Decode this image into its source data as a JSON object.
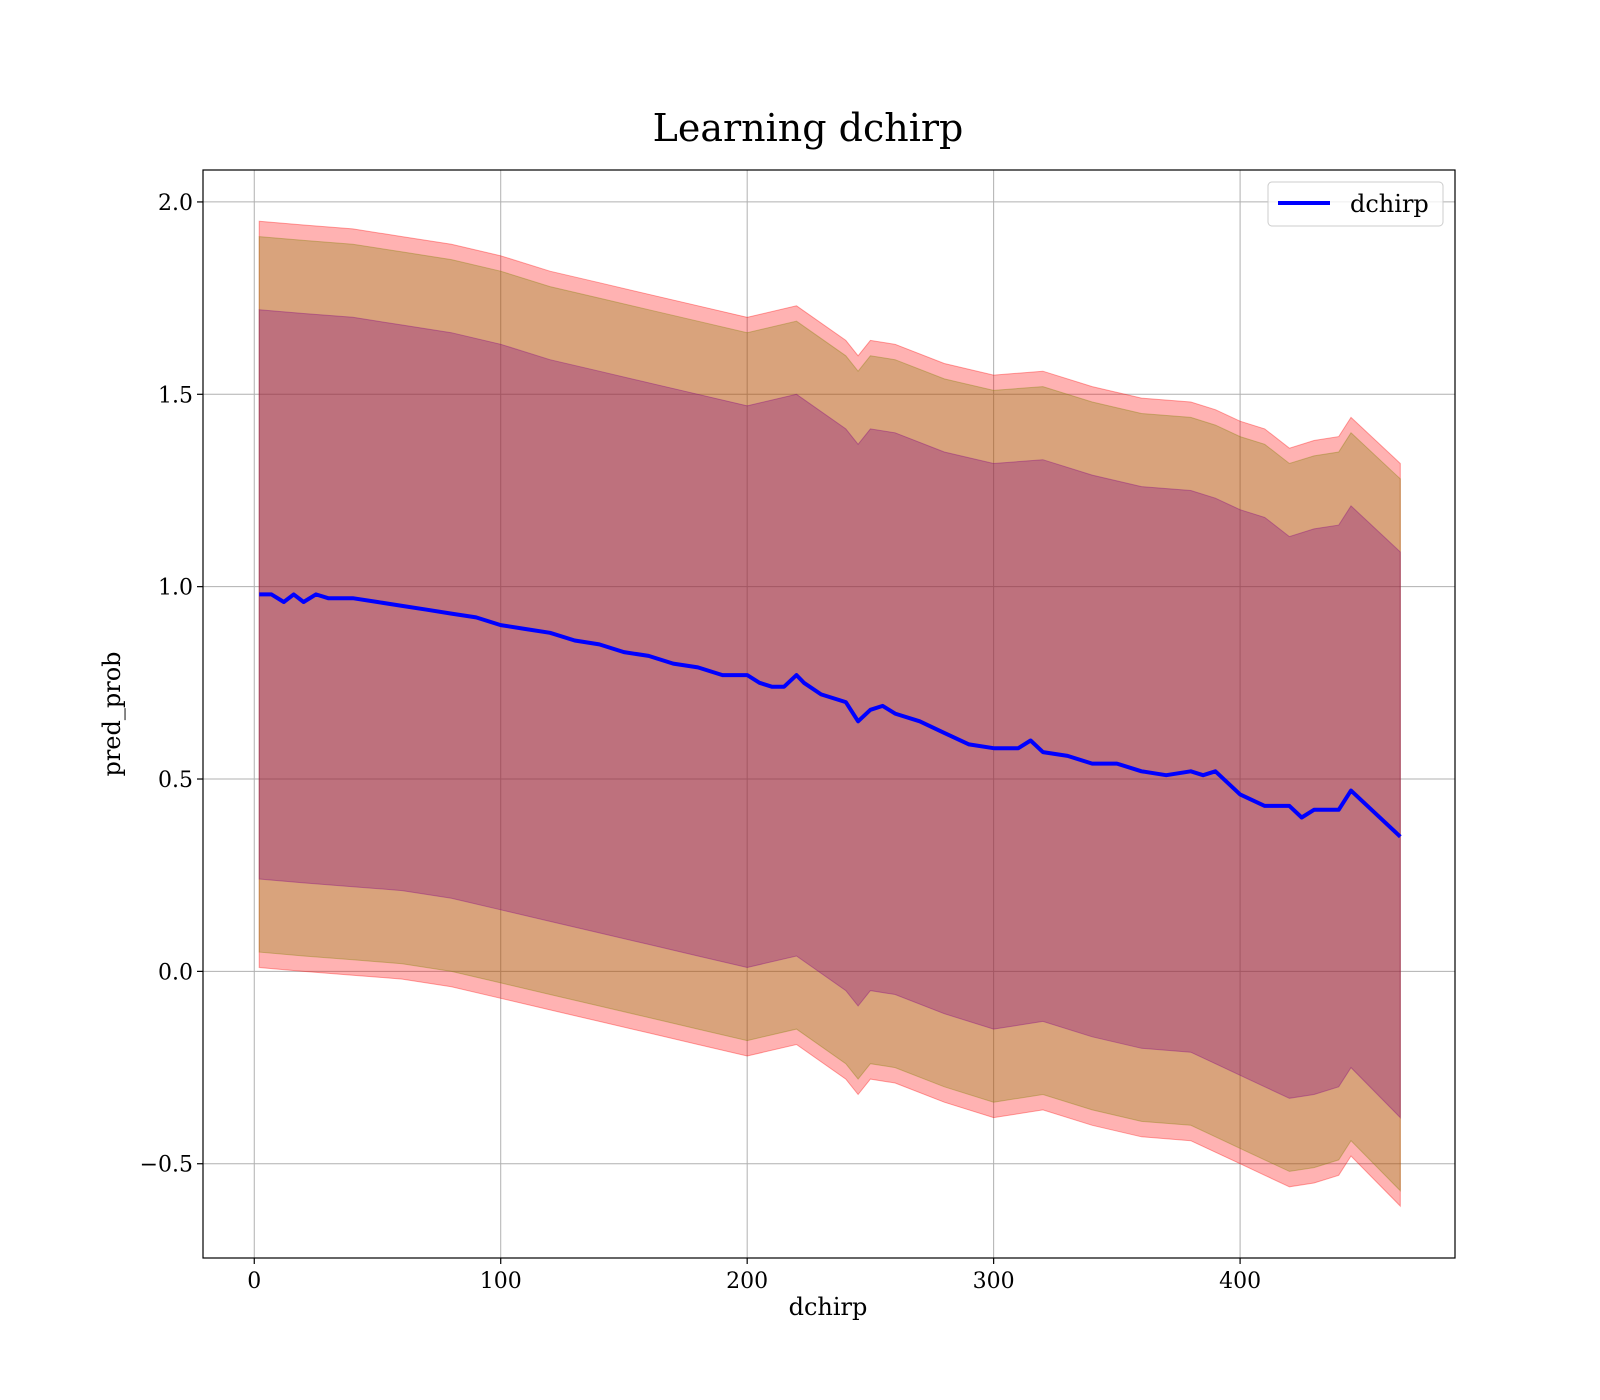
{
  "chart_data": {
    "type": "line",
    "title": "Learning dchirp",
    "xlabel": "dchirp",
    "ylabel": "pred_prob",
    "xlim": [
      -20.8,
      487.2
    ],
    "ylim": [
      -0.745,
      2.083
    ],
    "x_ticks": [
      0,
      100,
      200,
      300,
      400
    ],
    "x_tick_labels": [
      "0",
      "100",
      "200",
      "300",
      "400"
    ],
    "y_ticks": [
      -0.5,
      0.0,
      0.5,
      1.0,
      1.5,
      2.0
    ],
    "y_tick_labels": [
      "−0.5",
      "0.0",
      "0.5",
      "1.0",
      "1.5",
      "2.0"
    ],
    "grid": true,
    "legend_position": "top-right",
    "series": [
      {
        "name": "dchirp",
        "color": "#0000ff",
        "x": [
          2,
          7,
          12,
          16,
          20,
          25,
          30,
          40,
          50,
          60,
          70,
          80,
          90,
          100,
          110,
          120,
          130,
          140,
          150,
          160,
          170,
          180,
          190,
          200,
          205,
          210,
          215,
          220,
          223,
          230,
          240,
          245,
          250,
          255,
          260,
          270,
          280,
          290,
          300,
          310,
          315,
          320,
          330,
          340,
          350,
          360,
          370,
          380,
          385,
          390,
          400,
          410,
          420,
          425,
          430,
          440,
          445,
          455,
          465
        ],
        "y": [
          0.98,
          0.98,
          0.96,
          0.98,
          0.96,
          0.98,
          0.97,
          0.97,
          0.96,
          0.95,
          0.94,
          0.93,
          0.92,
          0.9,
          0.89,
          0.88,
          0.86,
          0.85,
          0.83,
          0.82,
          0.8,
          0.79,
          0.77,
          0.77,
          0.75,
          0.74,
          0.74,
          0.77,
          0.75,
          0.72,
          0.7,
          0.65,
          0.68,
          0.69,
          0.67,
          0.65,
          0.62,
          0.59,
          0.58,
          0.58,
          0.6,
          0.57,
          0.56,
          0.54,
          0.54,
          0.52,
          0.51,
          0.52,
          0.51,
          0.52,
          0.46,
          0.43,
          0.43,
          0.4,
          0.42,
          0.42,
          0.47,
          0.41,
          0.35
        ]
      }
    ],
    "bands": [
      {
        "color": "#ff0000",
        "opacity": 0.3,
        "x": [
          2,
          20,
          40,
          60,
          80,
          100,
          120,
          140,
          160,
          180,
          200,
          220,
          240,
          245,
          250,
          260,
          280,
          300,
          320,
          340,
          360,
          380,
          390,
          400,
          410,
          420,
          430,
          440,
          445,
          465
        ],
        "upper": [
          1.95,
          1.94,
          1.93,
          1.91,
          1.89,
          1.86,
          1.82,
          1.79,
          1.76,
          1.73,
          1.7,
          1.73,
          1.64,
          1.6,
          1.64,
          1.63,
          1.58,
          1.55,
          1.56,
          1.52,
          1.49,
          1.48,
          1.46,
          1.43,
          1.41,
          1.36,
          1.38,
          1.39,
          1.44,
          1.32
        ],
        "lower": [
          0.01,
          0.0,
          -0.01,
          -0.02,
          -0.04,
          -0.07,
          -0.1,
          -0.13,
          -0.16,
          -0.19,
          -0.22,
          -0.19,
          -0.28,
          -0.32,
          -0.28,
          -0.29,
          -0.34,
          -0.38,
          -0.36,
          -0.4,
          -0.43,
          -0.44,
          -0.47,
          -0.5,
          -0.53,
          -0.56,
          -0.55,
          -0.53,
          -0.48,
          -0.61
        ]
      },
      {
        "color": "#808000",
        "opacity": 0.3,
        "x": [
          2,
          20,
          40,
          60,
          80,
          100,
          120,
          140,
          160,
          180,
          200,
          220,
          240,
          245,
          250,
          260,
          280,
          300,
          320,
          340,
          360,
          380,
          390,
          400,
          410,
          420,
          430,
          440,
          445,
          465
        ],
        "upper": [
          1.91,
          1.9,
          1.89,
          1.87,
          1.85,
          1.82,
          1.78,
          1.75,
          1.72,
          1.69,
          1.66,
          1.69,
          1.6,
          1.56,
          1.6,
          1.59,
          1.54,
          1.51,
          1.52,
          1.48,
          1.45,
          1.44,
          1.42,
          1.39,
          1.37,
          1.32,
          1.34,
          1.35,
          1.4,
          1.28
        ],
        "lower": [
          0.05,
          0.04,
          0.03,
          0.02,
          0.0,
          -0.03,
          -0.06,
          -0.09,
          -0.12,
          -0.15,
          -0.18,
          -0.15,
          -0.24,
          -0.28,
          -0.24,
          -0.25,
          -0.3,
          -0.34,
          -0.32,
          -0.36,
          -0.39,
          -0.4,
          -0.43,
          -0.46,
          -0.49,
          -0.52,
          -0.51,
          -0.49,
          -0.44,
          -0.57
        ]
      },
      {
        "color": "#800080",
        "opacity": 0.3,
        "x": [
          2,
          20,
          40,
          60,
          80,
          100,
          120,
          140,
          160,
          180,
          200,
          220,
          240,
          245,
          250,
          260,
          280,
          300,
          320,
          340,
          360,
          380,
          390,
          400,
          410,
          420,
          430,
          440,
          445,
          465
        ],
        "upper": [
          1.72,
          1.71,
          1.7,
          1.68,
          1.66,
          1.63,
          1.59,
          1.56,
          1.53,
          1.5,
          1.47,
          1.5,
          1.41,
          1.37,
          1.41,
          1.4,
          1.35,
          1.32,
          1.33,
          1.29,
          1.26,
          1.25,
          1.23,
          1.2,
          1.18,
          1.13,
          1.15,
          1.16,
          1.21,
          1.09
        ],
        "lower": [
          0.24,
          0.23,
          0.22,
          0.21,
          0.19,
          0.16,
          0.13,
          0.1,
          0.07,
          0.04,
          0.01,
          0.04,
          -0.05,
          -0.09,
          -0.05,
          -0.06,
          -0.11,
          -0.15,
          -0.13,
          -0.17,
          -0.2,
          -0.21,
          -0.24,
          -0.27,
          -0.3,
          -0.33,
          -0.32,
          -0.3,
          -0.25,
          -0.38
        ]
      }
    ]
  }
}
